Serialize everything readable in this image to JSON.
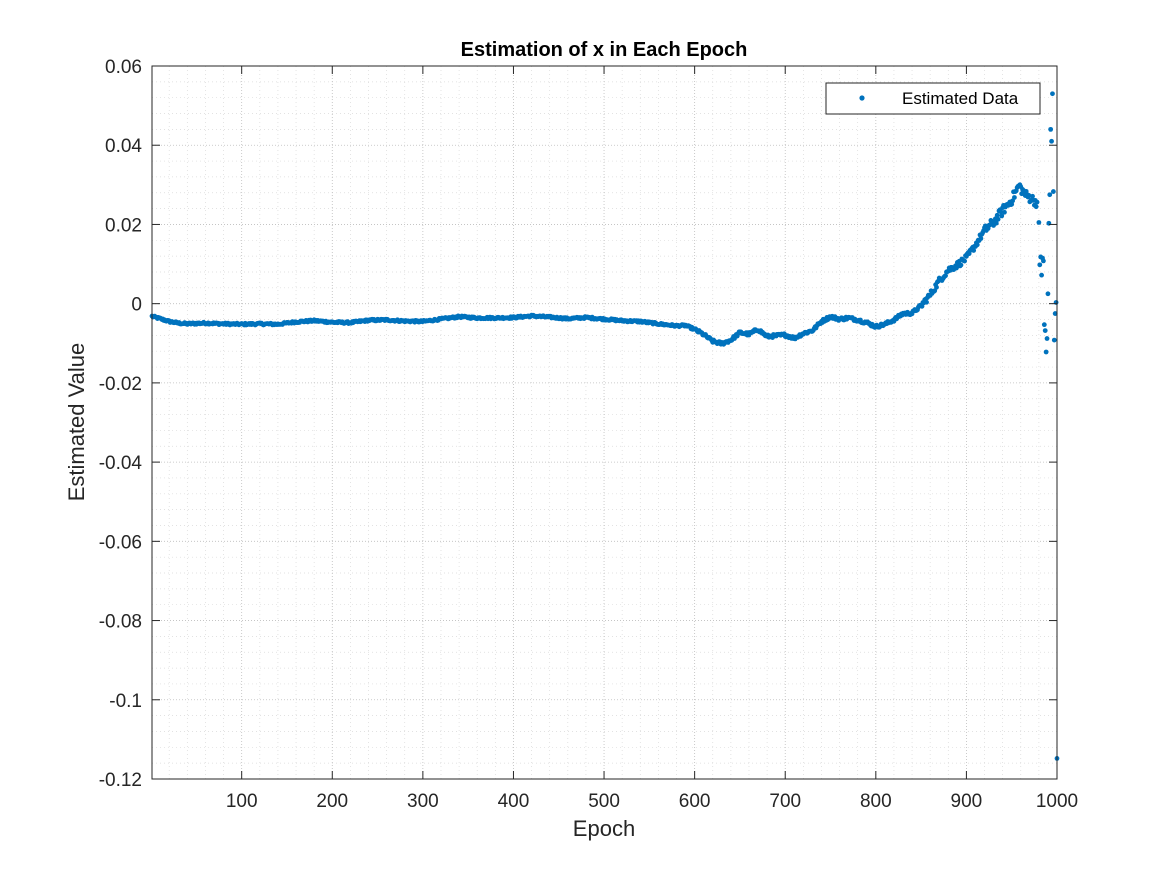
{
  "chart_data": {
    "type": "scatter",
    "title": "Estimation of x in Each Epoch",
    "xlabel": "Epoch",
    "ylabel": "Estimated Value",
    "xlim": [
      1,
      1000
    ],
    "ylim": [
      -0.12,
      0.06
    ],
    "xticks": [
      100,
      200,
      300,
      400,
      500,
      600,
      700,
      800,
      900,
      1000
    ],
    "xtick_labels": [
      "100",
      "200",
      "300",
      "400",
      "500",
      "600",
      "700",
      "800",
      "900",
      "1000"
    ],
    "yticks": [
      0.06,
      0.04,
      0.02,
      0,
      -0.02,
      -0.04,
      -0.06,
      -0.08,
      -0.1,
      -0.12
    ],
    "ytick_labels": [
      "0.06",
      "0.04",
      "0.02",
      "0",
      "-0.02",
      "-0.04",
      "-0.06",
      "-0.08",
      "-0.1",
      "-0.12"
    ],
    "grid": true,
    "minor_grid": true,
    "legend_position": "top-right",
    "series": [
      {
        "name": "Estimated Data",
        "color": "#0072BD",
        "marker": "dot",
        "key_points": [
          [
            1,
            -0.0032
          ],
          [
            10,
            -0.0038
          ],
          [
            20,
            -0.0045
          ],
          [
            30,
            -0.0049
          ],
          [
            40,
            -0.0051
          ],
          [
            60,
            -0.0049
          ],
          [
            80,
            -0.0051
          ],
          [
            100,
            -0.0052
          ],
          [
            120,
            -0.0051
          ],
          [
            140,
            -0.0052
          ],
          [
            160,
            -0.0046
          ],
          [
            180,
            -0.0043
          ],
          [
            200,
            -0.0047
          ],
          [
            220,
            -0.0048
          ],
          [
            240,
            -0.0042
          ],
          [
            260,
            -0.0041
          ],
          [
            280,
            -0.0044
          ],
          [
            300,
            -0.0045
          ],
          [
            320,
            -0.0039
          ],
          [
            340,
            -0.0033
          ],
          [
            360,
            -0.0036
          ],
          [
            380,
            -0.0036
          ],
          [
            400,
            -0.0035
          ],
          [
            420,
            -0.0031
          ],
          [
            440,
            -0.0034
          ],
          [
            460,
            -0.0038
          ],
          [
            480,
            -0.0035
          ],
          [
            500,
            -0.0039
          ],
          [
            520,
            -0.0043
          ],
          [
            540,
            -0.0045
          ],
          [
            560,
            -0.0051
          ],
          [
            580,
            -0.0056
          ],
          [
            590,
            -0.0055
          ],
          [
            600,
            -0.0065
          ],
          [
            610,
            -0.0078
          ],
          [
            620,
            -0.0095
          ],
          [
            630,
            -0.0101
          ],
          [
            640,
            -0.0092
          ],
          [
            650,
            -0.0073
          ],
          [
            660,
            -0.0077
          ],
          [
            670,
            -0.0065
          ],
          [
            680,
            -0.0083
          ],
          [
            690,
            -0.0081
          ],
          [
            700,
            -0.0079
          ],
          [
            710,
            -0.0087
          ],
          [
            720,
            -0.0075
          ],
          [
            730,
            -0.0068
          ],
          [
            740,
            -0.0045
          ],
          [
            750,
            -0.0033
          ],
          [
            760,
            -0.0039
          ],
          [
            770,
            -0.0036
          ],
          [
            780,
            -0.0041
          ],
          [
            790,
            -0.0048
          ],
          [
            800,
            -0.0058
          ],
          [
            810,
            -0.0052
          ],
          [
            820,
            -0.0041
          ],
          [
            830,
            -0.0025
          ],
          [
            840,
            -0.0024
          ],
          [
            850,
            -0.0005
          ],
          [
            860,
            0.0022
          ],
          [
            870,
            0.0058
          ],
          [
            880,
            0.0085
          ],
          [
            890,
            0.0098
          ],
          [
            900,
            0.0115
          ],
          [
            910,
            0.0148
          ],
          [
            920,
            0.0185
          ],
          [
            930,
            0.0205
          ],
          [
            940,
            0.0235
          ],
          [
            950,
            0.0262
          ],
          [
            958,
            0.0298
          ],
          [
            965,
            0.0275
          ],
          [
            972,
            0.0265
          ],
          [
            978,
            0.0255
          ]
        ],
        "scattered_points": [
          [
            980,
            0.0205
          ],
          [
            981,
            0.0098
          ],
          [
            982,
            0.0118
          ],
          [
            983,
            0.0072
          ],
          [
            984,
            0.0115
          ],
          [
            985,
            0.0108
          ],
          [
            986,
            -0.0053
          ],
          [
            987,
            -0.0068
          ],
          [
            988,
            -0.0122
          ],
          [
            989,
            -0.0088
          ],
          [
            990,
            0.0025
          ],
          [
            991,
            0.0203
          ],
          [
            992,
            0.0275
          ],
          [
            993,
            0.044
          ],
          [
            994,
            0.041
          ],
          [
            995,
            0.053
          ],
          [
            996,
            0.0283
          ],
          [
            997,
            -0.0092
          ],
          [
            998,
            -0.0025
          ],
          [
            999,
            0.0003
          ],
          [
            1000,
            -0.1148
          ]
        ]
      }
    ]
  }
}
